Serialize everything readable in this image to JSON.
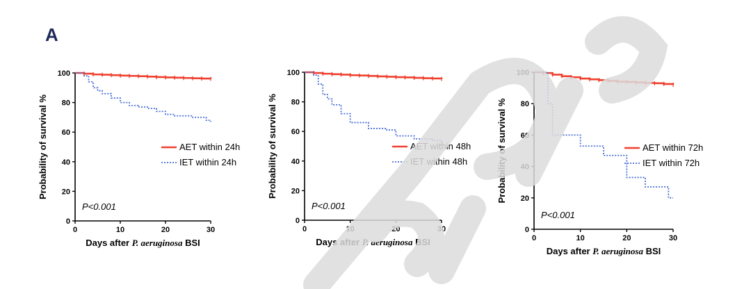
{
  "panel_letter": "A",
  "colors": {
    "aet": "#f0402e",
    "iet": "#4a6fd6",
    "axis": "#000000",
    "watermark": "#d8d8d8"
  },
  "chart_data": [
    {
      "type": "line",
      "ylabel": "Probability of survival %",
      "xlabel": {
        "pre": "Days after ",
        "italic": "P. aeruginosa",
        "post": " BSI"
      },
      "xlim": [
        0,
        30
      ],
      "ylim": [
        0,
        100
      ],
      "xticks": [
        0,
        10,
        20,
        30
      ],
      "yticks": [
        0,
        20,
        40,
        60,
        80,
        100
      ],
      "legend_position": "center-right",
      "annotation": "P<0.001",
      "series": [
        {
          "name": "AET within 24h",
          "style": "solid-red",
          "x": [
            0,
            2,
            4,
            6,
            8,
            10,
            12,
            14,
            16,
            18,
            20,
            22,
            24,
            26,
            28,
            30
          ],
          "y": [
            100,
            99.5,
            99,
            98.8,
            98.5,
            98.2,
            98,
            97.8,
            97.5,
            97.2,
            97,
            96.8,
            96.6,
            96.4,
            96.2,
            96
          ]
        },
        {
          "name": "IET within 24h",
          "style": "dotted-blue",
          "x": [
            0,
            2,
            3,
            4,
            5,
            6,
            8,
            10,
            12,
            14,
            16,
            18,
            20,
            22,
            24,
            26,
            28,
            29,
            30
          ],
          "y": [
            100,
            98,
            94,
            90,
            88,
            86,
            83,
            80,
            78,
            77,
            76,
            74,
            72,
            71,
            71,
            70,
            70,
            68,
            67
          ]
        }
      ]
    },
    {
      "type": "line",
      "ylabel": "Probability of survival %",
      "xlabel": {
        "pre": "Days after ",
        "italic": "P. aeruginosa",
        "post": " BSI"
      },
      "xlim": [
        0,
        30
      ],
      "ylim": [
        0,
        100
      ],
      "xticks": [
        0,
        10,
        20,
        30
      ],
      "yticks": [
        0,
        20,
        40,
        60,
        80,
        100
      ],
      "legend_position": "center-right",
      "annotation": "P<0.001",
      "series": [
        {
          "name": "AET within 48h",
          "style": "solid-red",
          "x": [
            0,
            2,
            4,
            6,
            8,
            10,
            12,
            14,
            16,
            18,
            20,
            22,
            24,
            26,
            28,
            30
          ],
          "y": [
            100,
            99.5,
            99,
            98.7,
            98.4,
            98,
            97.8,
            97.5,
            97.2,
            97,
            96.7,
            96.5,
            96.2,
            96,
            95.8,
            95.5
          ]
        },
        {
          "name": "IET within 48h",
          "style": "dotted-blue",
          "x": [
            0,
            2,
            3,
            4,
            5,
            6,
            8,
            10,
            12,
            14,
            16,
            18,
            20,
            22,
            24,
            26,
            28,
            30
          ],
          "y": [
            100,
            98,
            92,
            85,
            82,
            78,
            72,
            66,
            66,
            62,
            62,
            61,
            57,
            57,
            55,
            55,
            54,
            50
          ]
        }
      ]
    },
    {
      "type": "line",
      "ylabel": "Probability of survival %",
      "xlabel": {
        "pre": "Days after ",
        "italic": "P. aeruginosa",
        "post": " BSI"
      },
      "xlim": [
        0,
        30
      ],
      "ylim": [
        0,
        100
      ],
      "xticks": [
        0,
        10,
        20,
        30
      ],
      "yticks": [
        0,
        20,
        40,
        60,
        80,
        100
      ],
      "legend_position": "center-right",
      "annotation": "P<0.001",
      "series": [
        {
          "name": "AET within 72h",
          "style": "solid-red",
          "x": [
            0,
            2,
            4,
            6,
            8,
            10,
            12,
            14,
            16,
            18,
            20,
            22,
            24,
            26,
            28,
            30
          ],
          "y": [
            100,
            99.5,
            98.5,
            97.5,
            96.8,
            96,
            95.5,
            95,
            94.5,
            94,
            93.8,
            93.5,
            93.2,
            93,
            92.5,
            92
          ]
        },
        {
          "name": "IET within 72h",
          "style": "dotted-blue",
          "x": [
            0,
            2,
            3,
            4,
            10,
            15,
            20,
            24,
            29,
            30
          ],
          "y": [
            100,
            100,
            80,
            60,
            53,
            47,
            33,
            27,
            20,
            20
          ]
        }
      ]
    }
  ]
}
